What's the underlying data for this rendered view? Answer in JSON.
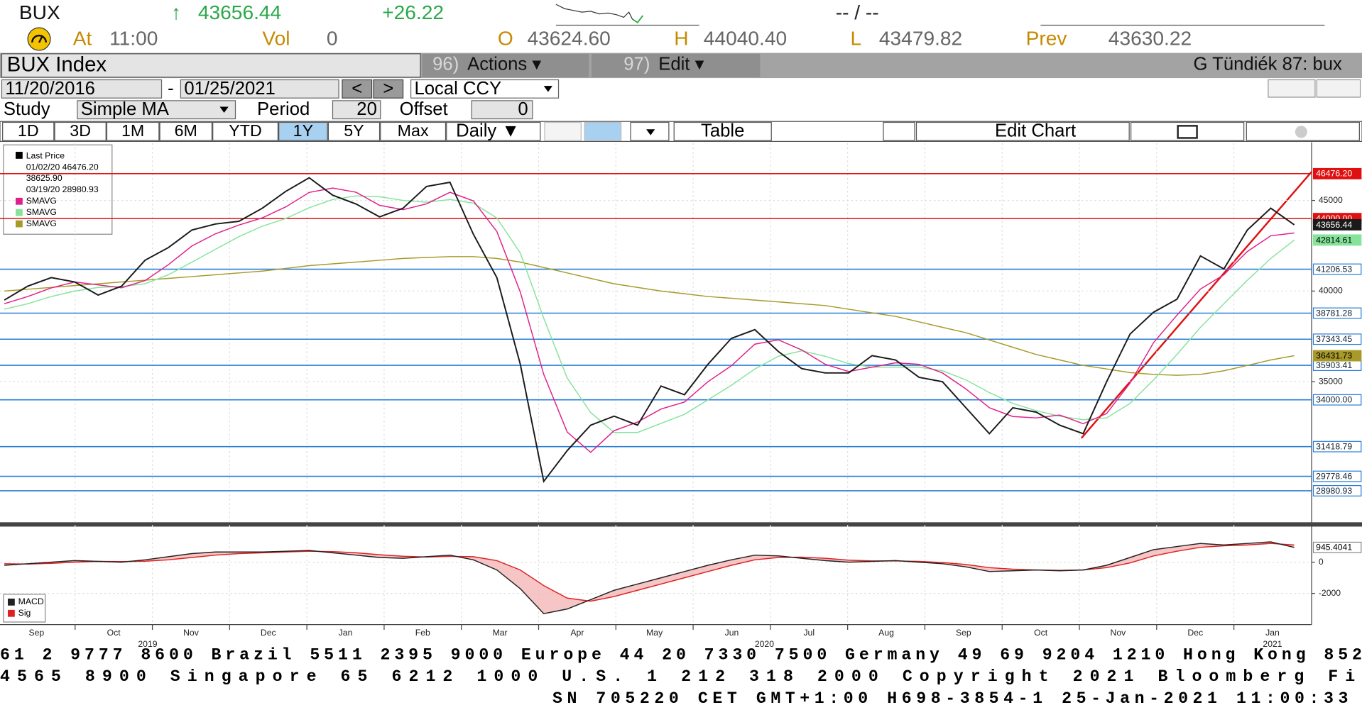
{
  "header": {
    "ticker": "BUX",
    "arrow": "↑",
    "last": "43656.44",
    "change": "+26.22",
    "bid_ask": "-- / --",
    "at_label": "At",
    "time": "11:00",
    "vol_label": "Vol",
    "vol": "0",
    "open_label": "O",
    "open": "43624.60",
    "high_label": "H",
    "high": "44040.40",
    "low_label": "L",
    "low": "43479.82",
    "prev_label": "Prev",
    "prev": "43630.22"
  },
  "toolbar": {
    "security": "BUX Index",
    "actions_num": "96)",
    "actions": "Actions ▾",
    "edit_num": "97)",
    "edit": "Edit ▾",
    "user": "G Tündiék 87: bux",
    "start_date": "11/20/2016",
    "date_sep": "-",
    "end_date": "01/25/2021",
    "prev": "<",
    "next": ">",
    "currency": "Local CCY",
    "study_label": "Study",
    "study": "Simple MA",
    "period_label": "Period",
    "period": "20",
    "offset_label": "Offset",
    "offset": "0",
    "ranges": [
      "1D",
      "3D",
      "1M",
      "6M",
      "YTD",
      "1Y",
      "5Y",
      "Max"
    ],
    "selected_range": 5,
    "frequency": "Daily ▼",
    "table": "Table",
    "edit_chart": "Edit Chart"
  },
  "chart_data": [
    {
      "type": "line",
      "legend_notes": [
        "01/02/20 46476.20",
        "38625.90",
        "03/19/20 28980.93"
      ],
      "ylim": [
        27340,
        48160
      ],
      "yticks": [
        35000,
        40000,
        45000
      ],
      "grid": true,
      "series": [
        {
          "name": "Last Price",
          "color": "#1a1a1a",
          "last_label": "43656.44",
          "values": [
            39500,
            40270,
            40740,
            40500,
            39780,
            40270,
            41700,
            42400,
            43370,
            43700,
            43850,
            44570,
            45500,
            46250,
            45290,
            44800,
            44090,
            44570,
            45770,
            46000,
            43130,
            40740,
            35960,
            29500,
            31200,
            32600,
            33100,
            32600,
            34760,
            34280,
            35960,
            37390,
            37870,
            36670,
            35720,
            35480,
            35480,
            36440,
            36200,
            35240,
            35000,
            33560,
            32130,
            33560,
            33320,
            32600,
            32130,
            35000,
            37630,
            38830,
            39550,
            41940,
            41220,
            43370,
            44570,
            43656.44
          ]
        },
        {
          "name": "SMAVG",
          "color": "#e0208a",
          "values": [
            39300,
            39700,
            40170,
            40500,
            40340,
            40180,
            40580,
            41460,
            42490,
            43160,
            43640,
            44040,
            44640,
            45440,
            45680,
            45450,
            44730,
            44490,
            44810,
            45450,
            44970,
            43290,
            39940,
            35400,
            32220,
            31100,
            32300,
            32770,
            33490,
            33880,
            35000,
            35880,
            37070,
            37310,
            36750,
            35960,
            35560,
            35800,
            36040,
            35960,
            35480,
            34600,
            33560,
            33080,
            33000,
            33160,
            32680,
            33240,
            34920,
            37150,
            38670,
            40110,
            40900,
            42180,
            43050,
            43200
          ]
        },
        {
          "name": "SMAVG",
          "color": "#86e39a",
          "last_label": "42814.61",
          "values": [
            39000,
            39300,
            39700,
            40000,
            40200,
            40250,
            40400,
            40900,
            41600,
            42300,
            43000,
            43580,
            44000,
            44600,
            45050,
            45250,
            45200,
            45000,
            44900,
            45050,
            44850,
            44030,
            42100,
            38500,
            35200,
            33300,
            32200,
            32200,
            32700,
            33200,
            34000,
            34800,
            35700,
            36400,
            36700,
            36400,
            36000,
            35800,
            35800,
            35800,
            35600,
            35100,
            34400,
            33800,
            33400,
            33100,
            32900,
            33000,
            33800,
            35100,
            36500,
            38000,
            39300,
            40600,
            41800,
            42814.61
          ]
        },
        {
          "name": "SMAVG",
          "color": "#a89a2a",
          "last_label": "36431.73",
          "values": [
            40000,
            40100,
            40200,
            40300,
            40400,
            40500,
            40600,
            40700,
            40800,
            40900,
            41000,
            41100,
            41250,
            41400,
            41500,
            41600,
            41700,
            41800,
            41850,
            41900,
            41900,
            41800,
            41600,
            41300,
            41000,
            40700,
            40400,
            40200,
            40000,
            39850,
            39700,
            39600,
            39500,
            39400,
            39300,
            39200,
            39000,
            38800,
            38600,
            38300,
            38000,
            37700,
            37300,
            36900,
            36500,
            36200,
            35900,
            35700,
            35500,
            35400,
            35350,
            35400,
            35600,
            35900,
            36200,
            36431.73
          ]
        }
      ],
      "levels": [
        {
          "value": 46476.2,
          "label": "46476.20",
          "color": "#e01010"
        },
        {
          "value": 44000,
          "label": "44000.00",
          "color": "#e01010"
        },
        {
          "value": 41206.53,
          "label": "41206.53",
          "color": "#2a7fd8"
        },
        {
          "value": 38781.28,
          "label": "38781.28",
          "color": "#2a7fd8"
        },
        {
          "value": 37343.45,
          "label": "37343.45",
          "color": "#2a7fd8"
        },
        {
          "value": 35903.41,
          "label": "35903.41",
          "color": "#2a7fd8"
        },
        {
          "value": 34000,
          "label": "34000.00",
          "color": "#2a7fd8"
        },
        {
          "value": 31418.79,
          "label": "31418.79",
          "color": "#2a7fd8"
        },
        {
          "value": 29778.46,
          "label": "29778.46",
          "color": "#2a7fd8"
        },
        {
          "value": 28980.93,
          "label": "28980.93",
          "color": "#2a7fd8"
        }
      ]
    },
    {
      "type": "line",
      "ylim": [
        -4000,
        2000
      ],
      "yticks": [
        0,
        -2000
      ],
      "grid": true,
      "series": [
        {
          "name": "MACD",
          "color": "#222222",
          "last_label": "945.4041",
          "values": [
            -200,
            -100,
            0,
            100,
            50,
            0,
            150,
            350,
            550,
            650,
            650,
            650,
            700,
            750,
            600,
            450,
            300,
            250,
            350,
            450,
            150,
            -500,
            -1700,
            -3300,
            -3000,
            -2400,
            -1800,
            -1400,
            -1000,
            -600,
            -200,
            150,
            450,
            400,
            250,
            100,
            0,
            50,
            100,
            0,
            -100,
            -300,
            -600,
            -550,
            -500,
            -550,
            -500,
            -200,
            300,
            800,
            1000,
            1200,
            1100,
            1200,
            1300,
            945.4041
          ]
        },
        {
          "name": "Sig",
          "color": "#e02020",
          "values": [
            -100,
            -120,
            -80,
            0,
            50,
            40,
            60,
            150,
            300,
            450,
            550,
            600,
            650,
            700,
            680,
            600,
            480,
            380,
            330,
            370,
            350,
            100,
            -500,
            -1500,
            -2300,
            -2500,
            -2200,
            -1800,
            -1400,
            -1000,
            -600,
            -200,
            150,
            300,
            320,
            250,
            130,
            80,
            80,
            50,
            -20,
            -150,
            -350,
            -450,
            -500,
            -520,
            -500,
            -350,
            -50,
            400,
            700,
            950,
            1050,
            1100,
            1200,
            1100
          ]
        }
      ]
    }
  ],
  "time_axis": {
    "months": [
      "Sep",
      "Oct",
      "Nov",
      "Dec",
      "Jan",
      "Feb",
      "Mar",
      "Apr",
      "May",
      "Jun",
      "Jul",
      "Aug",
      "Sep",
      "Oct",
      "Nov",
      "Dec",
      "Jan"
    ],
    "years": [
      "2019",
      "2020",
      "2021"
    ]
  },
  "footer": {
    "lines": [
      "61 2 9777 8600 Brazil 5511 2395 9000 Europe 44 20 7330 7500 Germany 49 69 9204 1210 Hong Kong 852",
      "4565 8900      Singapore 65 6212 1000      U.S. 1 212 318 2000      Copyright 2021 Bloomberg Fi",
      "SN 705220 CET  GMT+1:00 H698-3854-1 25-Jan-2021 11:00:33"
    ]
  }
}
